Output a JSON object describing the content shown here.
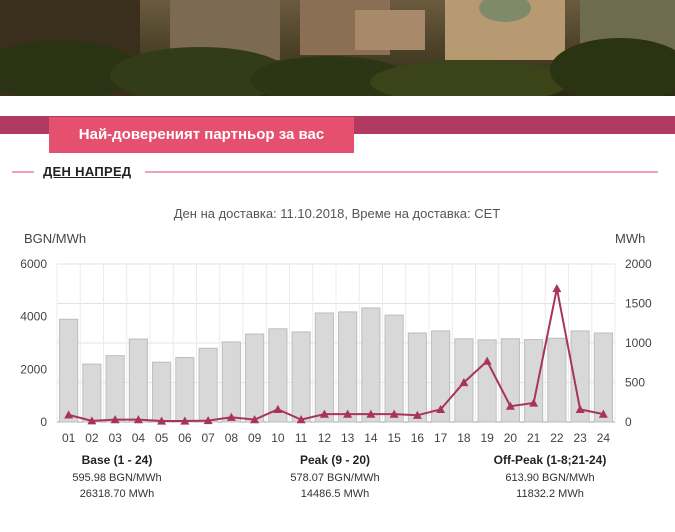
{
  "tagline": "Най-довереният партньор за вас",
  "section_title": "ДЕН НАПРЕД",
  "chart_data": {
    "type": "bar",
    "title": "Ден на доставка: 11.10.2018, Време на доставка: CET",
    "ylabel": "BGN/MWh",
    "y2label": "MWh",
    "ylim": [
      0,
      6000
    ],
    "y2lim": [
      0,
      2000
    ],
    "yticks": [
      "0",
      "2000",
      "4000",
      "6000"
    ],
    "y2ticks": [
      "0",
      "500",
      "1000",
      "1500",
      "2000"
    ],
    "categories": [
      "01",
      "02",
      "03",
      "04",
      "05",
      "06",
      "07",
      "08",
      "09",
      "10",
      "11",
      "12",
      "13",
      "14",
      "15",
      "16",
      "17",
      "18",
      "19",
      "20",
      "21",
      "22",
      "23",
      "24"
    ],
    "series": [
      {
        "type": "bar",
        "axis": "left",
        "values": [
          3900,
          2200,
          2520,
          3150,
          2270,
          2450,
          2800,
          3040,
          3340,
          3540,
          3420,
          4140,
          4180,
          4330,
          4060,
          3380,
          3460,
          3160,
          3120,
          3160,
          3130,
          3180,
          3460,
          3380
        ]
      },
      {
        "type": "line",
        "axis": "right",
        "marker": "triangle",
        "values": [
          90,
          15,
          30,
          30,
          12,
          12,
          18,
          60,
          30,
          160,
          30,
          100,
          100,
          100,
          100,
          85,
          160,
          500,
          770,
          200,
          240,
          1690,
          160,
          100
        ]
      }
    ],
    "grid": true,
    "colors": {
      "bar": "#d8d8d8",
      "bar_edge": "#bdbdbd",
      "line": "#a8345e"
    },
    "summary": [
      {
        "title": "Base (1 - 24)",
        "price": "595.98 BGN/MWh",
        "volume": "26318.70 MWh"
      },
      {
        "title": "Peak (9 - 20)",
        "price": "578.07 BGN/MWh",
        "volume": "14486.5 MWh"
      },
      {
        "title": "Off-Peak (1-8;21-24)",
        "price": "613.90 BGN/MWh",
        "volume": "11832.2 MWh"
      }
    ]
  }
}
